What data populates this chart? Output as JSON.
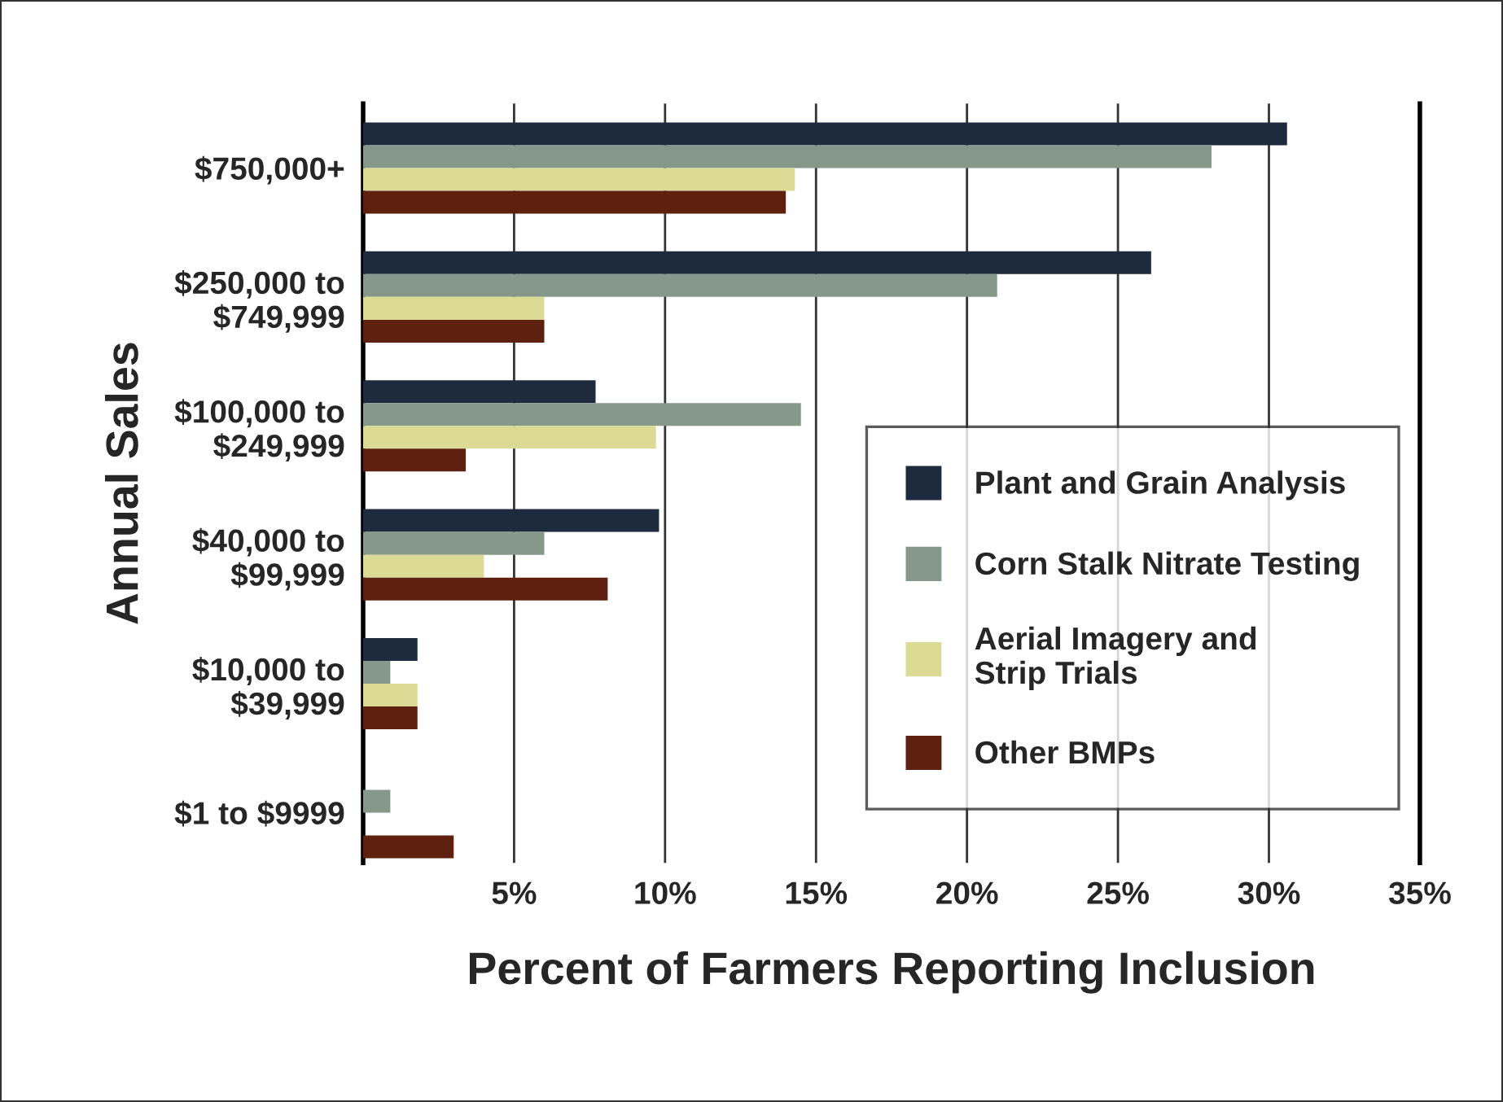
{
  "chart_data": {
    "type": "bar",
    "orientation": "horizontal",
    "xlabel": "Percent of Farmers Reporting Inclusion",
    "ylabel": "Annual Sales",
    "categories": [
      "$750,000+",
      "$250,000 to\n$749,999",
      "$100,000 to\n$249,999",
      "$40,000 to\n$99,999",
      "$10,000 to\n$39,999",
      "$1 to $9999"
    ],
    "series": [
      {
        "name": "Plant and Grain Analysis",
        "color": "#1e2a3e",
        "values": [
          30.6,
          26.1,
          7.7,
          9.8,
          1.8,
          0
        ]
      },
      {
        "name": "Corn Stalk Nitrate Testing",
        "color": "#86988a",
        "values": [
          28.1,
          21.0,
          14.5,
          6.0,
          0.9,
          0.9
        ]
      },
      {
        "name": "Aerial Imagery and\nStrip Trials",
        "color": "#dbdb96",
        "values": [
          14.3,
          6.0,
          9.7,
          4.0,
          1.8,
          0
        ]
      },
      {
        "name": "Other BMPs",
        "color": "#5e2110",
        "values": [
          14.0,
          6.0,
          3.4,
          8.1,
          1.8,
          3.0
        ]
      }
    ],
    "xlim": [
      0,
      35
    ],
    "xticks": [
      {
        "value": 5,
        "label": "5%"
      },
      {
        "value": 10,
        "label": "10%"
      },
      {
        "value": 15,
        "label": "15%"
      },
      {
        "value": 20,
        "label": "20%"
      },
      {
        "value": 25,
        "label": "25%"
      },
      {
        "value": 30,
        "label": "30%"
      },
      {
        "value": 35,
        "label": "35%"
      }
    ],
    "grid": "x",
    "legend": "bottom right"
  }
}
